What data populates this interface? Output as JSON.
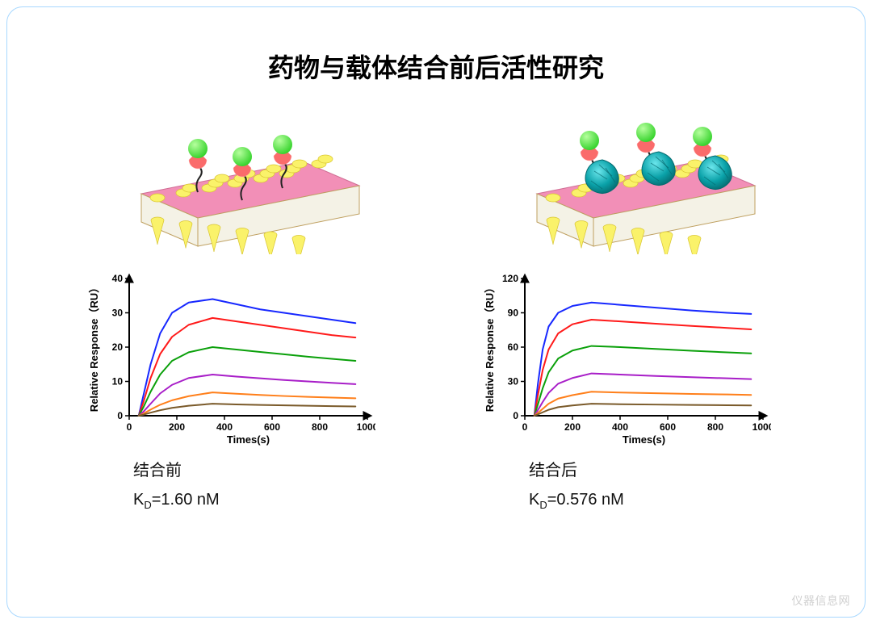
{
  "title": "药物与载体结合前后活性研究",
  "watermark": "仪器信息网",
  "colors": {
    "border": "#a8d8ff",
    "background": "#ffffff",
    "slab_top": "#f28fb7",
    "slab_side": "#f4f2e6",
    "slab_edge": "#bfa060",
    "pore": "#faf26a",
    "green_sphere": "#39d42f",
    "pink_half": "#fa6b6b",
    "teal_blob": "#0aa1a8",
    "teal_dark": "#066b70"
  },
  "left": {
    "caption": "结合前",
    "kd_label": "K",
    "kd_sub": "D",
    "kd_eq": "=1.60 nM",
    "has_carrier": false,
    "chart": {
      "xlabel": "Times(s)",
      "ylabel": "Relative Response（RU）",
      "xlim": [
        0,
        1000
      ],
      "xtick_step": 200,
      "ylim": [
        0,
        40
      ],
      "ytick_step": 10,
      "axis_color": "#000000",
      "label_fontsize": 13,
      "tick_fontsize": 12,
      "line_width": 2,
      "series": [
        {
          "color": "#1728ff",
          "x": [
            40,
            60,
            90,
            130,
            180,
            250,
            350,
            450,
            550,
            650,
            750,
            850,
            950
          ],
          "y": [
            0,
            6,
            15,
            24,
            30,
            33,
            34,
            32.5,
            31,
            30,
            29,
            28,
            27
          ]
        },
        {
          "color": "#ff1a1a",
          "x": [
            40,
            60,
            90,
            130,
            180,
            250,
            350,
            450,
            550,
            650,
            750,
            850,
            950
          ],
          "y": [
            0,
            4,
            11,
            18,
            23,
            26.5,
            28.5,
            27.5,
            26.5,
            25.5,
            24.5,
            23.5,
            22.8
          ]
        },
        {
          "color": "#0aa00a",
          "x": [
            40,
            60,
            90,
            130,
            180,
            250,
            350,
            450,
            550,
            650,
            750,
            850,
            950
          ],
          "y": [
            0,
            2.5,
            7,
            12,
            16,
            18.5,
            20,
            19.3,
            18.6,
            17.9,
            17.2,
            16.6,
            16
          ]
        },
        {
          "color": "#a81ec8",
          "x": [
            40,
            60,
            90,
            130,
            180,
            250,
            350,
            450,
            550,
            650,
            750,
            850,
            950
          ],
          "y": [
            0,
            1.2,
            3.5,
            6.5,
            9,
            11,
            12,
            11.4,
            10.9,
            10.4,
            10,
            9.6,
            9.2
          ]
        },
        {
          "color": "#ff7f1a",
          "x": [
            40,
            60,
            90,
            130,
            180,
            250,
            350,
            450,
            550,
            650,
            750,
            850,
            950
          ],
          "y": [
            0,
            0.6,
            1.8,
            3.2,
            4.5,
            5.7,
            6.8,
            6.4,
            6.05,
            5.75,
            5.5,
            5.3,
            5.1
          ]
        },
        {
          "color": "#7a5a2a",
          "x": [
            40,
            60,
            90,
            130,
            180,
            250,
            350,
            450,
            550,
            650,
            750,
            850,
            950
          ],
          "y": [
            0,
            0.3,
            0.9,
            1.6,
            2.3,
            2.9,
            3.5,
            3.3,
            3.15,
            3.02,
            2.9,
            2.8,
            2.7
          ]
        }
      ]
    }
  },
  "right": {
    "caption": "结合后",
    "kd_label": "K",
    "kd_sub": "D",
    "kd_eq": "=0.576 nM",
    "has_carrier": true,
    "chart": {
      "xlabel": "Times(s)",
      "ylabel": "Relative Response（RU）",
      "xlim": [
        0,
        1000
      ],
      "xtick_step": 200,
      "ylim": [
        0,
        120
      ],
      "ytick_step": 30,
      "axis_color": "#000000",
      "label_fontsize": 13,
      "tick_fontsize": 12,
      "line_width": 2,
      "series": [
        {
          "color": "#1728ff",
          "x": [
            40,
            55,
            75,
            100,
            140,
            200,
            280,
            400,
            550,
            700,
            850,
            950
          ],
          "y": [
            0,
            28,
            58,
            78,
            90,
            96,
            99,
            97,
            94.5,
            92,
            90,
            89
          ]
        },
        {
          "color": "#ff1a1a",
          "x": [
            40,
            55,
            75,
            100,
            140,
            200,
            280,
            400,
            550,
            700,
            850,
            950
          ],
          "y": [
            0,
            18,
            40,
            58,
            72,
            80,
            84,
            82.5,
            80.5,
            78.5,
            76.8,
            75.5
          ]
        },
        {
          "color": "#0aa00a",
          "x": [
            40,
            55,
            75,
            100,
            140,
            200,
            280,
            400,
            550,
            700,
            850,
            950
          ],
          "y": [
            0,
            10,
            24,
            38,
            50,
            57,
            61,
            60,
            58.4,
            56.8,
            55.4,
            54.5
          ]
        },
        {
          "color": "#a81ec8",
          "x": [
            40,
            55,
            75,
            100,
            140,
            200,
            280,
            400,
            550,
            700,
            850,
            950
          ],
          "y": [
            0,
            5,
            12,
            20,
            28,
            33,
            37,
            36,
            34.8,
            33.7,
            32.7,
            32
          ]
        },
        {
          "color": "#ff7f1a",
          "x": [
            40,
            55,
            75,
            100,
            140,
            200,
            280,
            400,
            550,
            700,
            850,
            950
          ],
          "y": [
            0,
            2.5,
            6,
            10.5,
            15,
            18,
            21,
            20.3,
            19.7,
            19.1,
            18.6,
            18.2
          ]
        },
        {
          "color": "#7a5a2a",
          "x": [
            40,
            55,
            75,
            100,
            140,
            200,
            280,
            400,
            550,
            700,
            850,
            950
          ],
          "y": [
            0,
            1.2,
            3,
            5.2,
            7.5,
            9,
            10.5,
            10.1,
            9.75,
            9.45,
            9.2,
            9
          ]
        }
      ]
    }
  }
}
